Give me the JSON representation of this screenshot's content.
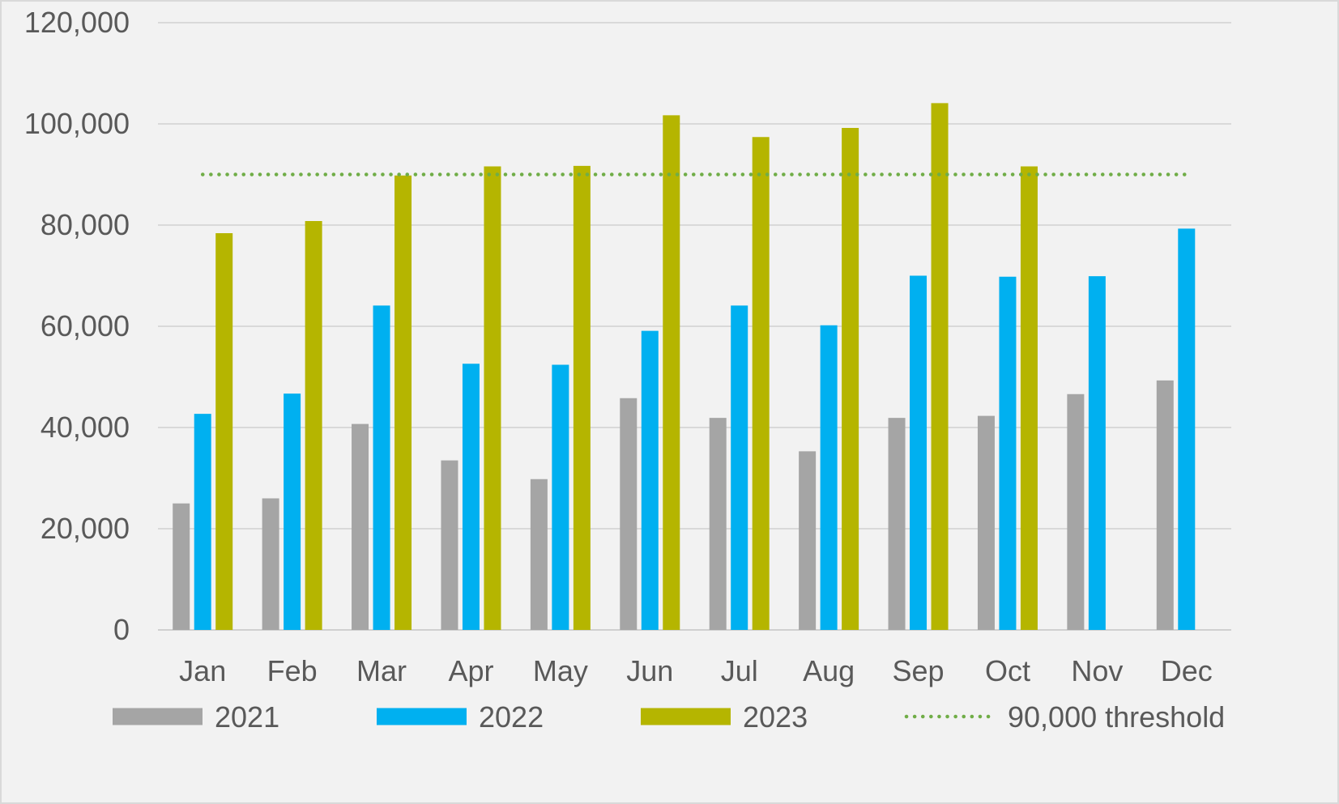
{
  "chart_data": {
    "type": "bar",
    "title": "",
    "xlabel": "",
    "ylabel": "",
    "categories": [
      "Jan",
      "Feb",
      "Mar",
      "Apr",
      "May",
      "Jun",
      "Jul",
      "Aug",
      "Sep",
      "Oct",
      "Nov",
      "Dec"
    ],
    "ylim": [
      0,
      120000
    ],
    "yticks": [
      0,
      20000,
      40000,
      60000,
      80000,
      100000,
      120000
    ],
    "ytick_labels": [
      "0",
      "20,000",
      "40,000",
      "60,000",
      "80,000",
      "100,000",
      "120,000"
    ],
    "grid": true,
    "legend_position": "bottom",
    "series": [
      {
        "name": "2021",
        "color": "#a5a5a5",
        "values": [
          25000,
          26000,
          40700,
          33500,
          29800,
          45800,
          41900,
          35300,
          41900,
          42300,
          46600,
          49300
        ]
      },
      {
        "name": "2022",
        "color": "#00b0f0",
        "values": [
          42700,
          46700,
          64100,
          52600,
          52400,
          59100,
          64100,
          60200,
          70000,
          69800,
          69900,
          79300
        ]
      },
      {
        "name": "2023",
        "color": "#b5b500",
        "values": [
          78400,
          80800,
          89800,
          91600,
          91700,
          101700,
          97400,
          99200,
          104100,
          91600,
          null,
          null
        ]
      }
    ],
    "threshold": {
      "name": "90,000 threshold",
      "value": 90000,
      "color": "#70ad47",
      "style": "dotted"
    }
  }
}
